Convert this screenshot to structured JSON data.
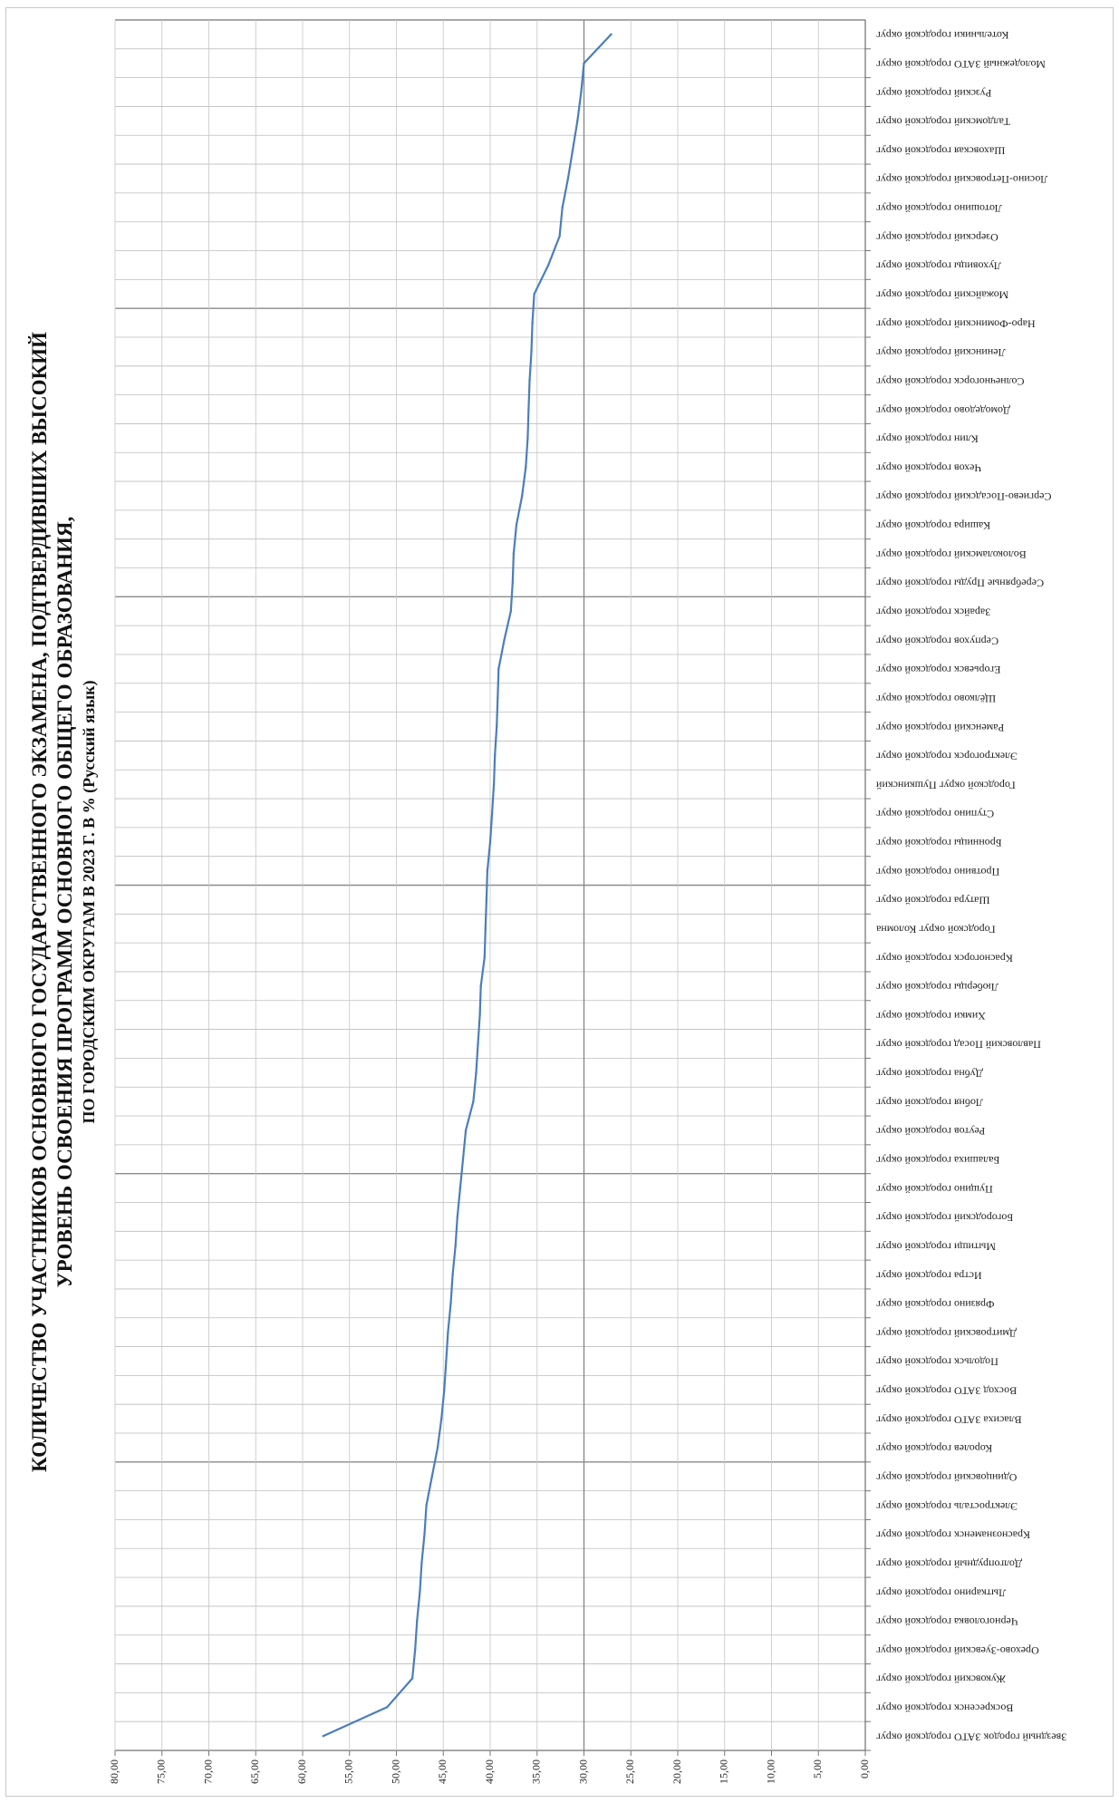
{
  "chart_data": {
    "type": "line",
    "title_lines": [
      "КОЛИЧЕСТВО УЧАСТНИКОВ ОСНОВНОГО ГОСУДАРСТВЕННОГО ЭКЗАМЕНА, ПОДТВЕРДИВШИХ ВЫСОКИЙ",
      "УРОВЕНЬ ОСВОЕНИЯ ПРОГРАММ ОСНОВНОГО ОБЩЕГО ОБРАЗОВАНИЯ,",
      "ПО ГОРОДСКИМ ОКРУГАМ В 2023 Г. В % (Русский язык)"
    ],
    "orientation": "rotated-90",
    "grid": true,
    "ylim": [
      0,
      80
    ],
    "y_ticks": [
      "0,00",
      "5,00",
      "10,00",
      "15,00",
      "20,00",
      "25,00",
      "30,00",
      "35,00",
      "40,00",
      "45,00",
      "50,00",
      "55,00",
      "60,00",
      "65,00",
      "70,00",
      "75,00",
      "80,00"
    ],
    "line_color": "#4a7ebb",
    "categories": [
      "Звездный городок ЗАТО городской округ",
      "Воскресенск городской округ",
      "Жуковский городской округ",
      "Орехово-Зуевский городской округ",
      "Черноголовка городской округ",
      "Лыткарино городской округ",
      "Долгопрудный городской округ",
      "Краснознаменск городской округ",
      "Электросталь городской округ",
      "Одинцовский городской округ",
      "Королев городской округ",
      "Власиха ЗАТО городской округ",
      "Восход ЗАТО городской округ",
      "Подольск городской округ",
      "Дмитровский городской округ",
      "Фрязино городской округ",
      "Истра городской округ",
      "Мытищи городской округ",
      "Богородский городской округ",
      "Пущино городской округ",
      "Балашиха городской округ",
      "Реутов городской округ",
      "Лобня городской округ",
      "Дубна городской округ",
      "Павловский Посад городской округ",
      "Химки городской округ",
      "Люберцы городской округ",
      "Красногорск городской округ",
      "Городской округ Коломна",
      "Шатура городской округ",
      "Протвино городской округ",
      "Бронницы городской округ",
      "Ступино городской округ",
      "Городской округ Пушкинский",
      "Электрогорск городской округ",
      "Раменский городской округ",
      "Щёлково городской округ",
      "Егорьевск городской округ",
      "Серпухов городской округ",
      "Зарайск городской округ",
      "Серебряные Пруды городской округ",
      "Волоколамский городской округ",
      "Кашира городской округ",
      "Сергиево-Посадский городской округ",
      "Чехов городской округ",
      "Клин городской округ",
      "Домодедово городской округ",
      "Солнечногорск городской округ",
      "Ленинский городской округ",
      "Наро-Фоминский городской округ",
      "Можайский городской округ",
      "Луховицы городской округ",
      "Озерский городской округ",
      "Лотошино городской округ",
      "Лосино-Петровский городской округ",
      "Шаховская городской округ",
      "Талдомский городской округ",
      "Рузский городской округ",
      "Молодежный ЗАТО городской округ",
      "Котельники городской округ"
    ],
    "values": [
      57.8,
      51.0,
      48.3,
      48.0,
      47.8,
      47.5,
      47.3,
      47.0,
      46.8,
      46.2,
      45.6,
      45.2,
      44.9,
      44.7,
      44.5,
      44.2,
      44.0,
      43.7,
      43.5,
      43.2,
      42.9,
      42.6,
      41.8,
      41.5,
      41.3,
      41.1,
      41.0,
      40.6,
      40.5,
      40.4,
      40.3,
      40.0,
      39.8,
      39.6,
      39.5,
      39.3,
      39.2,
      39.1,
      38.5,
      37.8,
      37.6,
      37.5,
      37.2,
      36.6,
      36.2,
      36.0,
      35.9,
      35.8,
      35.6,
      35.5,
      35.3,
      33.8,
      32.6,
      32.3,
      31.7,
      31.2,
      30.7,
      30.3,
      30.0,
      27.1
    ]
  }
}
